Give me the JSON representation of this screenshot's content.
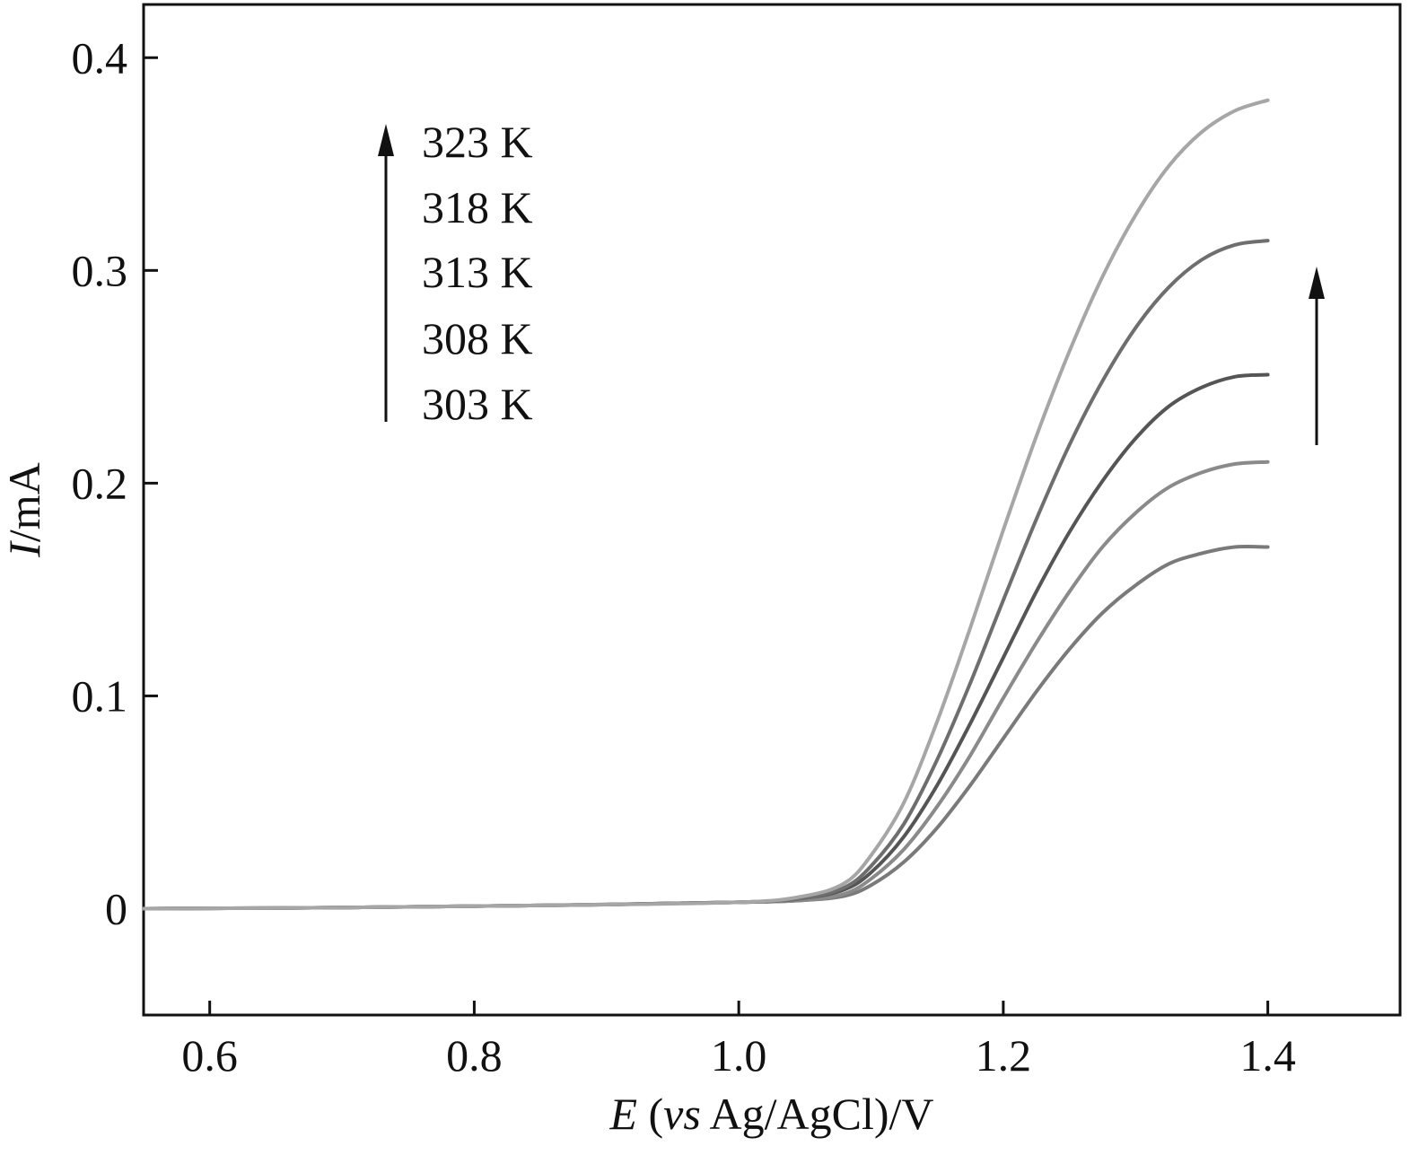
{
  "chart_data": {
    "type": "line",
    "title": "",
    "xlabel_parts": {
      "italic1": "E",
      "plain1": " (",
      "italic2": "vs",
      "plain2": " Ag/AgCl)/V"
    },
    "ylabel_parts": {
      "italic": "I",
      "plain": "/mA"
    },
    "xlim": [
      0.55,
      1.5
    ],
    "ylim": [
      -0.05,
      0.425
    ],
    "x_ticks": [
      0.6,
      0.8,
      1.0,
      1.2,
      1.4
    ],
    "x_tick_labels": [
      "0.6",
      "0.8",
      "1.0",
      "1.2",
      "1.4"
    ],
    "y_ticks": [
      0,
      0.1,
      0.2,
      0.3,
      0.4
    ],
    "y_tick_labels": [
      "0",
      "0.1",
      "0.2",
      "0.3",
      "0.4"
    ],
    "grid": false,
    "legend": {
      "placement": "top-left",
      "labels": [
        "323 K",
        "318 K",
        "313 K",
        "308 K",
        "303 K"
      ]
    },
    "series": [
      {
        "color": "#a6a6a6",
        "x": [
          0.55,
          0.7,
          0.85,
          1.0,
          1.05,
          1.08,
          1.1,
          1.125,
          1.15,
          1.175,
          1.2,
          1.225,
          1.25,
          1.275,
          1.3,
          1.325,
          1.35,
          1.375,
          1.4
        ],
        "y": [
          0.0,
          0.0005,
          0.0015,
          0.003,
          0.006,
          0.012,
          0.025,
          0.05,
          0.088,
          0.132,
          0.178,
          0.222,
          0.262,
          0.297,
          0.326,
          0.349,
          0.365,
          0.375,
          0.38
        ]
      },
      {
        "color": "#6e6e6e",
        "x": [
          0.55,
          0.7,
          0.85,
          1.0,
          1.05,
          1.08,
          1.1,
          1.125,
          1.15,
          1.175,
          1.2,
          1.225,
          1.25,
          1.275,
          1.3,
          1.325,
          1.35,
          1.375,
          1.4
        ],
        "y": [
          0.0,
          0.0005,
          0.0015,
          0.003,
          0.005,
          0.01,
          0.02,
          0.04,
          0.07,
          0.106,
          0.145,
          0.183,
          0.218,
          0.248,
          0.273,
          0.292,
          0.305,
          0.312,
          0.314
        ]
      },
      {
        "color": "#555555",
        "x": [
          0.55,
          0.7,
          0.85,
          1.0,
          1.05,
          1.08,
          1.1,
          1.125,
          1.15,
          1.175,
          1.2,
          1.225,
          1.25,
          1.275,
          1.3,
          1.325,
          1.35,
          1.375,
          1.4
        ],
        "y": [
          0.0,
          0.0005,
          0.0015,
          0.003,
          0.005,
          0.009,
          0.017,
          0.034,
          0.058,
          0.087,
          0.118,
          0.149,
          0.177,
          0.201,
          0.221,
          0.236,
          0.245,
          0.25,
          0.251
        ]
      },
      {
        "color": "#8a8a8a",
        "x": [
          0.55,
          0.7,
          0.85,
          1.0,
          1.05,
          1.08,
          1.1,
          1.125,
          1.15,
          1.175,
          1.2,
          1.225,
          1.25,
          1.275,
          1.3,
          1.325,
          1.35,
          1.375,
          1.4
        ],
        "y": [
          0.0,
          0.0005,
          0.0015,
          0.003,
          0.004,
          0.007,
          0.014,
          0.028,
          0.048,
          0.072,
          0.099,
          0.125,
          0.149,
          0.17,
          0.186,
          0.198,
          0.205,
          0.209,
          0.21
        ]
      },
      {
        "color": "#7a7a7a",
        "x": [
          0.55,
          0.7,
          0.85,
          1.0,
          1.05,
          1.08,
          1.1,
          1.125,
          1.15,
          1.175,
          1.2,
          1.225,
          1.25,
          1.275,
          1.3,
          1.325,
          1.35,
          1.375,
          1.4
        ],
        "y": [
          0.0,
          0.0005,
          0.0015,
          0.003,
          0.004,
          0.006,
          0.011,
          0.022,
          0.038,
          0.058,
          0.08,
          0.102,
          0.122,
          0.139,
          0.152,
          0.162,
          0.167,
          0.17,
          0.17
        ]
      }
    ]
  }
}
